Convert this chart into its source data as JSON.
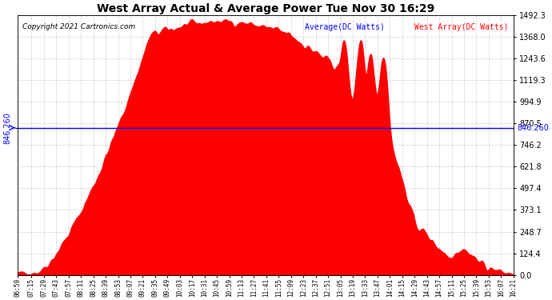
{
  "title": "West Array Actual & Average Power Tue Nov 30 16:29",
  "copyright": "Copyright 2021 Cartronics.com",
  "legend_avg": "Average(DC Watts)",
  "legend_west": "West Array(DC Watts)",
  "avg_value": 846.26,
  "avg_label": "846.260",
  "ymax": 1492.3,
  "ymin": 0.0,
  "yticks": [
    0.0,
    124.4,
    248.7,
    373.1,
    497.4,
    621.8,
    746.2,
    870.5,
    994.9,
    1119.3,
    1243.6,
    1368.0,
    1492.3
  ],
  "ytick_labels": [
    "0.0",
    "124.4",
    "248.7",
    "373.1",
    "497.4",
    "621.8",
    "746.2",
    "870.5",
    "994.9",
    "1119.3",
    "1243.6",
    "1368.0",
    "1492.3"
  ],
  "background_color": "#ffffff",
  "fill_color": "#ff0000",
  "line_color": "#0000ff",
  "grid_color": "#cccccc",
  "title_color": "#000000",
  "copyright_color": "#000000",
  "legend_avg_color": "#0000ff",
  "legend_west_color": "#ff0000",
  "xtick_labels": [
    "06:59",
    "07:15",
    "07:29",
    "07:43",
    "07:57",
    "08:11",
    "08:25",
    "08:39",
    "08:53",
    "09:07",
    "09:21",
    "09:35",
    "09:49",
    "10:03",
    "10:17",
    "10:31",
    "10:45",
    "10:59",
    "11:13",
    "11:27",
    "11:41",
    "11:55",
    "12:09",
    "12:23",
    "12:37",
    "12:51",
    "13:05",
    "13:19",
    "13:33",
    "13:47",
    "14:01",
    "14:15",
    "14:29",
    "14:43",
    "14:57",
    "15:11",
    "15:25",
    "15:39",
    "15:53",
    "16:07",
    "16:21"
  ]
}
